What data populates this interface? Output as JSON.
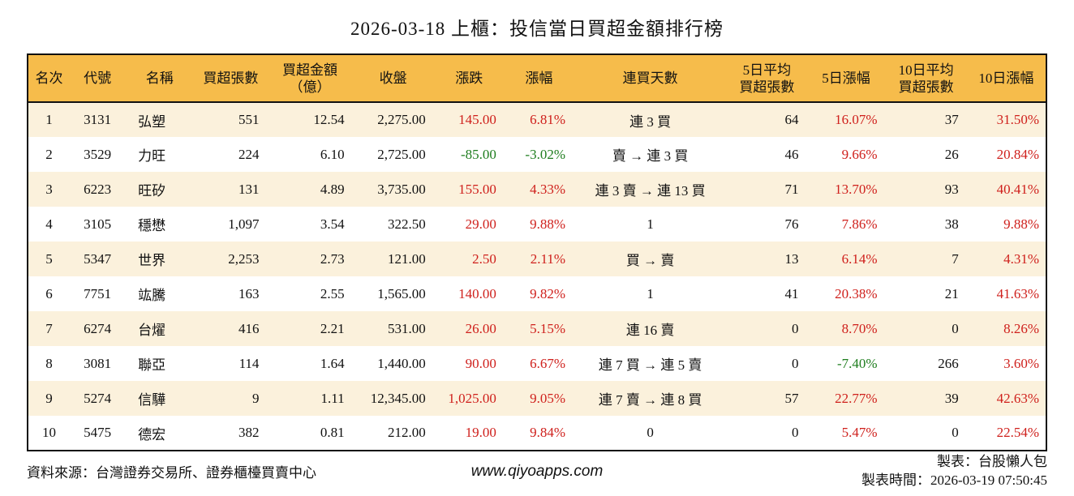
{
  "title": "2026-03-18 上櫃：投信當日買超金額排行榜",
  "colors": {
    "header_bg": "#F6BC4B",
    "row_alt_bg": "#FBF1DC",
    "up_red": "#CF201C",
    "down_green": "#1E7D1E",
    "border": "#111111"
  },
  "table": {
    "columns": [
      {
        "key": "rank",
        "label": "名次"
      },
      {
        "key": "code",
        "label": "代號"
      },
      {
        "key": "name",
        "label": "名稱"
      },
      {
        "key": "lots",
        "label": "買超張數"
      },
      {
        "key": "amount",
        "label": "買超金額\n（億）"
      },
      {
        "key": "close",
        "label": "收盤"
      },
      {
        "key": "change",
        "label": "漲跌"
      },
      {
        "key": "pct",
        "label": "漲幅"
      },
      {
        "key": "streak",
        "label": "連買天數"
      },
      {
        "key": "avg5",
        "label": "5日平均\n買超張數"
      },
      {
        "key": "pct5",
        "label": "5日漲幅"
      },
      {
        "key": "avg10",
        "label": "10日平均\n買超張數"
      },
      {
        "key": "pct10",
        "label": "10日漲幅"
      }
    ],
    "rows": [
      {
        "rank": "1",
        "code": "3131",
        "name": "弘塑",
        "lots": "551",
        "amount": "12.54",
        "close": "2,275.00",
        "change": "145.00",
        "pct": "6.81%",
        "streak": "連 3 買",
        "avg5": "64",
        "pct5": "16.07%",
        "avg10": "37",
        "pct10": "31.50%"
      },
      {
        "rank": "2",
        "code": "3529",
        "name": "力旺",
        "lots": "224",
        "amount": "6.10",
        "close": "2,725.00",
        "change": "-85.00",
        "pct": "-3.02%",
        "streak": "賣 → 連 3 買",
        "avg5": "46",
        "pct5": "9.66%",
        "avg10": "26",
        "pct10": "20.84%"
      },
      {
        "rank": "3",
        "code": "6223",
        "name": "旺矽",
        "lots": "131",
        "amount": "4.89",
        "close": "3,735.00",
        "change": "155.00",
        "pct": "4.33%",
        "streak": "連 3 賣 → 連 13 買",
        "avg5": "71",
        "pct5": "13.70%",
        "avg10": "93",
        "pct10": "40.41%"
      },
      {
        "rank": "4",
        "code": "3105",
        "name": "穩懋",
        "lots": "1,097",
        "amount": "3.54",
        "close": "322.50",
        "change": "29.00",
        "pct": "9.88%",
        "streak": "1",
        "avg5": "76",
        "pct5": "7.86%",
        "avg10": "38",
        "pct10": "9.88%"
      },
      {
        "rank": "5",
        "code": "5347",
        "name": "世界",
        "lots": "2,253",
        "amount": "2.73",
        "close": "121.00",
        "change": "2.50",
        "pct": "2.11%",
        "streak": "買 → 賣",
        "avg5": "13",
        "pct5": "6.14%",
        "avg10": "7",
        "pct10": "4.31%"
      },
      {
        "rank": "6",
        "code": "7751",
        "name": "竑騰",
        "lots": "163",
        "amount": "2.55",
        "close": "1,565.00",
        "change": "140.00",
        "pct": "9.82%",
        "streak": "1",
        "avg5": "41",
        "pct5": "20.38%",
        "avg10": "21",
        "pct10": "41.63%"
      },
      {
        "rank": "7",
        "code": "6274",
        "name": "台燿",
        "lots": "416",
        "amount": "2.21",
        "close": "531.00",
        "change": "26.00",
        "pct": "5.15%",
        "streak": "連 16 賣",
        "avg5": "0",
        "pct5": "8.70%",
        "avg10": "0",
        "pct10": "8.26%"
      },
      {
        "rank": "8",
        "code": "3081",
        "name": "聯亞",
        "lots": "114",
        "amount": "1.64",
        "close": "1,440.00",
        "change": "90.00",
        "pct": "6.67%",
        "streak": "連 7 買 → 連 5 賣",
        "avg5": "0",
        "pct5": "-7.40%",
        "avg10": "266",
        "pct10": "3.60%"
      },
      {
        "rank": "9",
        "code": "5274",
        "name": "信驊",
        "lots": "9",
        "amount": "1.11",
        "close": "12,345.00",
        "change": "1,025.00",
        "pct": "9.05%",
        "streak": "連 7 賣 → 連 8 買",
        "avg5": "57",
        "pct5": "22.77%",
        "avg10": "39",
        "pct10": "42.63%"
      },
      {
        "rank": "10",
        "code": "5475",
        "name": "德宏",
        "lots": "382",
        "amount": "0.81",
        "close": "212.00",
        "change": "19.00",
        "pct": "9.84%",
        "streak": "0",
        "avg5": "0",
        "pct5": "5.47%",
        "avg10": "0",
        "pct10": "22.54%"
      }
    ]
  },
  "footer": {
    "source": "資料來源：台灣證券交易所、證券櫃檯買賣中心",
    "site": "www.qiyoapps.com",
    "maker": "製表：台股懶人包",
    "made_time": "製表時間：2026-03-19 07:50:45"
  }
}
